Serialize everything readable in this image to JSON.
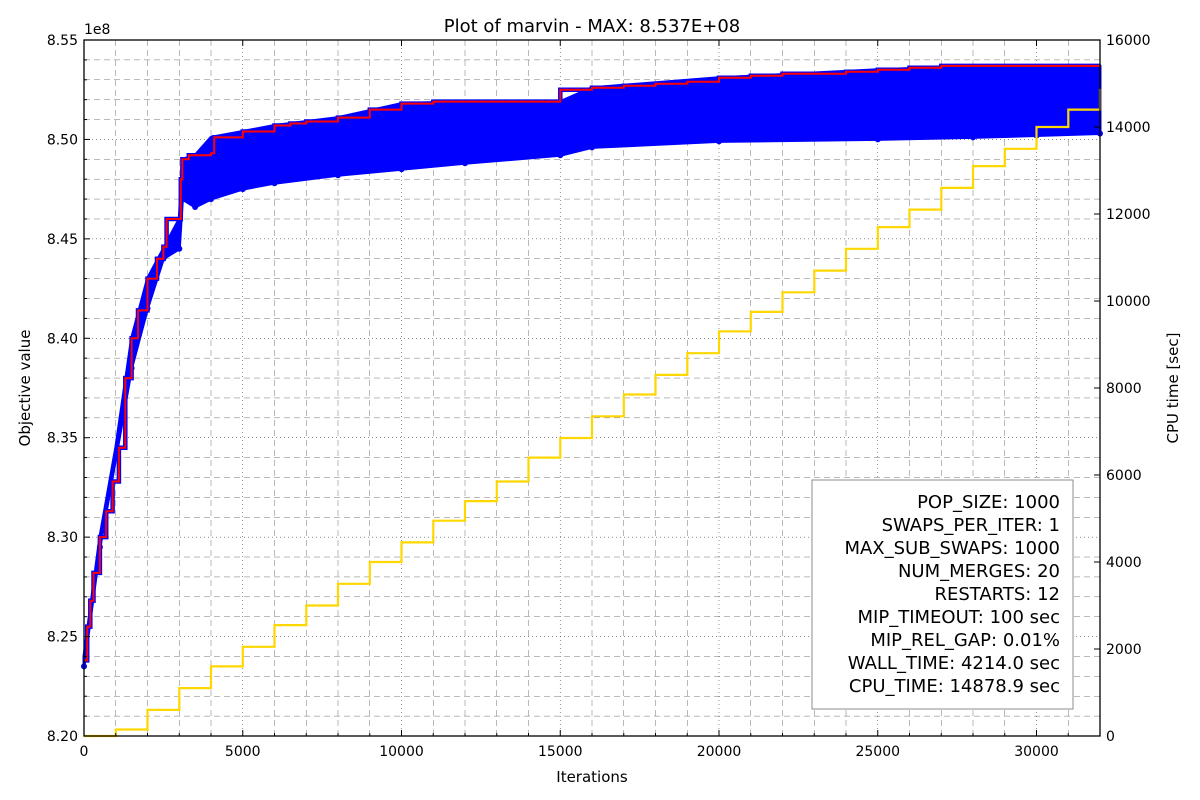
{
  "chart_data": {
    "type": "line",
    "title": "Plot of marvin - MAX: 8.537E+08",
    "xlabel": "Iterations",
    "ylabel": "Objective value",
    "y2label": "CPU time [sec]",
    "y_multiplier_label": "1e8",
    "xlim": [
      0,
      32000
    ],
    "ylim": [
      8.2,
      8.55
    ],
    "y2lim": [
      0,
      16000
    ],
    "x_ticks": [
      0,
      5000,
      10000,
      15000,
      20000,
      25000,
      30000
    ],
    "x_tick_labels": [
      "0",
      "5000",
      "10000",
      "15000",
      "20000",
      "25000",
      "30000"
    ],
    "y_ticks": [
      8.2,
      8.25,
      8.3,
      8.35,
      8.4,
      8.45,
      8.5,
      8.55
    ],
    "y_tick_labels": [
      "8.20",
      "8.25",
      "8.30",
      "8.35",
      "8.40",
      "8.45",
      "8.50",
      "8.55"
    ],
    "y2_ticks": [
      0,
      2000,
      4000,
      6000,
      8000,
      10000,
      12000,
      14000,
      16000
    ],
    "y2_tick_labels": [
      "0",
      "2000",
      "4000",
      "6000",
      "8000",
      "10000",
      "12000",
      "14000",
      "16000"
    ],
    "grid": true,
    "legend_placement": "lower-right",
    "colors": {
      "population": "#0000ff",
      "best": "#ff0000",
      "cpu": "#ffd700"
    },
    "series": [
      {
        "color": "#ff0000",
        "axis": "left",
        "kind": "step",
        "x": [
          0,
          100,
          200,
          300,
          500,
          700,
          900,
          1100,
          1300,
          1500,
          1700,
          2000,
          2300,
          2500,
          2600,
          3000,
          3050,
          3100,
          3300,
          4000,
          4100,
          5000,
          6000,
          6500,
          7000,
          8000,
          9000,
          10000,
          11000,
          12000,
          13000,
          14000,
          15000,
          16000,
          17000,
          18000,
          19000,
          20000,
          21000,
          22000,
          23000,
          24000,
          25000,
          26000,
          27000,
          28000,
          29000,
          30000,
          31000,
          32000
        ],
        "values": [
          8.238,
          8.255,
          8.268,
          8.282,
          8.3,
          8.313,
          8.328,
          8.345,
          8.38,
          8.4,
          8.414,
          8.43,
          8.44,
          8.446,
          8.46,
          8.46,
          8.48,
          8.49,
          8.492,
          8.493,
          8.501,
          8.504,
          8.507,
          8.508,
          8.509,
          8.511,
          8.515,
          8.518,
          8.519,
          8.519,
          8.519,
          8.519,
          8.525,
          8.526,
          8.527,
          8.528,
          8.529,
          8.531,
          8.532,
          8.533,
          8.533,
          8.534,
          8.535,
          8.536,
          8.537,
          8.537,
          8.537,
          8.537,
          8.537,
          8.537
        ]
      },
      {
        "color": "#0000ff",
        "axis": "left",
        "kind": "band",
        "x": [
          0,
          500,
          1000,
          1500,
          2000,
          2500,
          3000,
          3100,
          3500,
          4000,
          5000,
          6000,
          8000,
          10000,
          12000,
          15000,
          16000,
          20000,
          25000,
          28000,
          30000,
          32000
        ],
        "lower": [
          8.235,
          8.295,
          8.34,
          8.385,
          8.415,
          8.44,
          8.445,
          8.47,
          8.466,
          8.47,
          8.475,
          8.478,
          8.482,
          8.485,
          8.488,
          8.492,
          8.496,
          8.499,
          8.5,
          8.501,
          8.502,
          8.503
        ],
        "upper": [
          8.24,
          8.3,
          8.345,
          8.4,
          8.43,
          8.445,
          8.46,
          8.49,
          8.492,
          8.501,
          8.504,
          8.507,
          8.511,
          8.518,
          8.519,
          8.519,
          8.526,
          8.531,
          8.535,
          8.537,
          8.537,
          8.537
        ]
      },
      {
        "color": "#ffd700",
        "axis": "right",
        "kind": "step",
        "x": [
          0,
          1000,
          2000,
          3000,
          4000,
          5000,
          6000,
          7000,
          8000,
          9000,
          10000,
          11000,
          12000,
          13000,
          14000,
          15000,
          16000,
          17000,
          18000,
          19000,
          20000,
          21000,
          22000,
          23000,
          24000,
          25000,
          26000,
          27000,
          28000,
          29000,
          30000,
          31000,
          32000
        ],
        "values": [
          0,
          150,
          600,
          1100,
          1600,
          2050,
          2550,
          3000,
          3500,
          4000,
          4450,
          4950,
          5400,
          5850,
          6400,
          6850,
          7350,
          7850,
          8300,
          8800,
          9300,
          9750,
          10200,
          10700,
          11200,
          11700,
          12100,
          12600,
          13100,
          13500,
          14000,
          14400,
          14878.9
        ]
      }
    ],
    "legend_lines": [
      "POP_SIZE: 1000",
      "SWAPS_PER_ITER: 1",
      "MAX_SUB_SWAPS: 1000",
      "NUM_MERGES: 20",
      "RESTARTS: 12",
      "MIP_TIMEOUT: 100 sec",
      "MIP_REL_GAP: 0.01%",
      "WALL_TIME: 4214.0 sec",
      "CPU_TIME: 14878.9 sec"
    ]
  }
}
